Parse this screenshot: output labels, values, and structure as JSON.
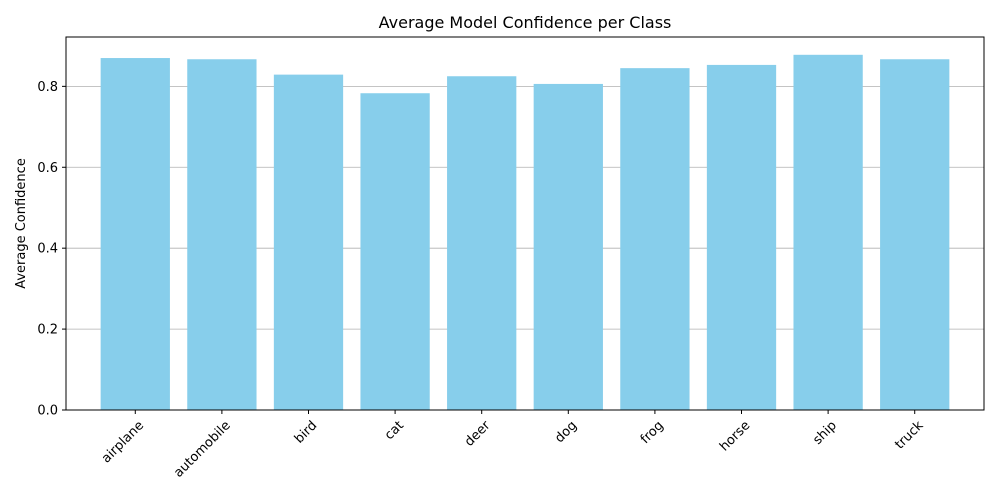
{
  "chart_data": {
    "type": "bar",
    "title": "Average Model Confidence per Class",
    "xlabel": "",
    "ylabel": "Average Confidence",
    "categories": [
      "airplane",
      "automobile",
      "bird",
      "cat",
      "deer",
      "dog",
      "frog",
      "horse",
      "ship",
      "truck"
    ],
    "values": [
      0.87,
      0.867,
      0.829,
      0.783,
      0.825,
      0.806,
      0.845,
      0.853,
      0.878,
      0.867
    ],
    "ylim": [
      0,
      0.922
    ],
    "yticks": [
      0.0,
      0.2,
      0.4,
      0.6,
      0.8
    ],
    "ytick_labels": [
      "0.0",
      "0.2",
      "0.4",
      "0.6",
      "0.8"
    ],
    "grid": "y",
    "bar_color": "#87CEEB",
    "grid_color": "#b0b0b0"
  }
}
